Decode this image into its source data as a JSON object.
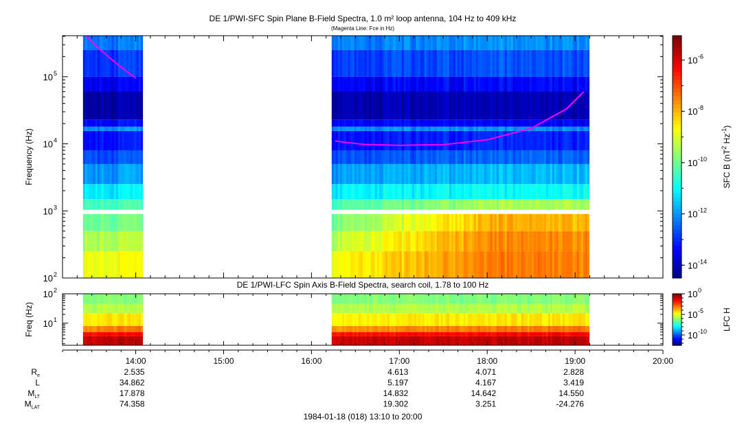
{
  "chart_data": [
    {
      "type": "heatmap",
      "title": "DE 1/PWI-SFC  Spin Plane B-Field Spectra, 1.0 m² loop antenna, 104 Hz to 409 kHz",
      "subtitle": "(Magenta Line: Fce in Hz)",
      "ylabel": "Frequency (Hz)",
      "yscale": "log",
      "ylim": [
        100,
        409000
      ],
      "yticks": [
        {
          "v": 100,
          "label": "10",
          "exp": "2"
        },
        {
          "v": 1000,
          "label": "10",
          "exp": "3"
        },
        {
          "v": 10000,
          "label": "10",
          "exp": "4"
        },
        {
          "v": 100000,
          "label": "10",
          "exp": "5"
        }
      ],
      "colorbar": {
        "label": "SFC B (nT",
        "label_sup1": "2",
        "label_mid": " Hz",
        "label_sup2": "-1",
        "label_end": ")",
        "log_range": [
          -14.5,
          -5.05
        ],
        "ticks": [
          {
            "v": -14,
            "label": "10",
            "exp": "-14"
          },
          {
            "v": -12,
            "label": "10",
            "exp": "-12"
          },
          {
            "v": -10,
            "label": "10",
            "exp": "-10"
          },
          {
            "v": -8,
            "label": "10",
            "exp": "-8"
          },
          {
            "v": -6,
            "label": "10",
            "exp": "-6"
          }
        ]
      },
      "data_intervals_hours": [
        [
          13.4,
          14.07
        ],
        [
          16.23,
          19.15
        ]
      ],
      "bands": [
        {
          "f": [
            250000,
            409000
          ],
          "log_power": [
            -12.2,
            -12.0
          ]
        },
        {
          "f": [
            100000,
            250000
          ],
          "log_power": [
            -12.8,
            -12.6
          ]
        },
        {
          "f": [
            60000,
            100000
          ],
          "log_power": [
            -13.4,
            -13.3
          ]
        },
        {
          "f": [
            23000,
            60000
          ],
          "log_power": [
            -14.1,
            -14.0
          ]
        },
        {
          "f": [
            18000,
            23000
          ],
          "log_power": [
            -13.3,
            -13.4
          ]
        },
        {
          "f": [
            15500,
            18000
          ],
          "log_power": [
            -12.0,
            -12.0
          ]
        },
        {
          "f": [
            8000,
            15500
          ],
          "log_power": [
            -13.2,
            -13.0
          ]
        },
        {
          "f": [
            5000,
            8000
          ],
          "log_power": [
            -12.6,
            -12.4
          ]
        },
        {
          "f": [
            2500,
            5000
          ],
          "log_power": [
            -11.9,
            -11.6
          ]
        },
        {
          "f": [
            1500,
            2500
          ],
          "log_power": [
            -11.1,
            -10.9
          ]
        },
        {
          "f": [
            1040,
            1500
          ],
          "log_power": [
            -10.3,
            -9.4
          ]
        },
        {
          "f": [
            500,
            900
          ],
          "log_power": [
            -9.9,
            -7.9
          ]
        },
        {
          "f": [
            250,
            500
          ],
          "log_power": [
            -9.3,
            -7.5
          ]
        },
        {
          "f": [
            100,
            250
          ],
          "log_power": [
            -8.7,
            -7.4
          ]
        }
      ],
      "fce_line": [
        {
          "x_hours": [
            13.43,
            13.6,
            13.8,
            14.0
          ],
          "f": [
            409000,
            250000,
            150000,
            95000
          ]
        },
        {
          "x_hours": [
            16.27,
            16.6,
            17.0,
            17.5,
            18.0,
            18.5,
            18.9,
            19.1
          ],
          "f": [
            11000,
            9800,
            9500,
            9700,
            11500,
            17000,
            33000,
            60000
          ]
        }
      ],
      "fce_color": "#ff00ff"
    },
    {
      "type": "heatmap",
      "title": "DE 1/PWI-LFC  Spin Axis B-Field Spectra, search coil, 1.78 to 100 Hz",
      "ylabel": "Freq (Hz)",
      "yscale": "log",
      "ylim": [
        1.78,
        100
      ],
      "yticks": [
        {
          "v": 10,
          "label": "10",
          "exp": "1"
        },
        {
          "v": 100,
          "label": "10",
          "exp": "2"
        }
      ],
      "colorbar": {
        "label": "LFC H",
        "log_range": [
          -12.5,
          0
        ],
        "ticks": [
          {
            "v": -10,
            "label": "10",
            "exp": "-10"
          },
          {
            "v": -5,
            "label": "10",
            "exp": "-5"
          },
          {
            "v": 0,
            "label": "10",
            "exp": "0"
          }
        ]
      },
      "data_intervals_hours": [
        [
          13.4,
          14.07
        ],
        [
          16.23,
          19.15
        ]
      ],
      "bands": [
        {
          "f": [
            45,
            100
          ],
          "log_power": [
            -6.2,
            -6.2
          ]
        },
        {
          "f": [
            22,
            45
          ],
          "log_power": [
            -5.6,
            -5.6
          ]
        },
        {
          "f": [
            8,
            22
          ],
          "log_power": [
            -4.6,
            -4.4
          ]
        },
        {
          "f": [
            5,
            8
          ],
          "log_power": [
            -3.4,
            -3.0
          ]
        },
        {
          "f": [
            3.6,
            5
          ],
          "log_power": [
            -1.8,
            -1.6
          ]
        },
        {
          "f": [
            1.78,
            3.6
          ],
          "log_power": [
            -1.0,
            -0.8
          ]
        }
      ]
    }
  ],
  "time_axis": {
    "range_hours": [
      13.1667,
      20.0
    ],
    "ticks": [
      {
        "h": 14,
        "label": "14:00"
      },
      {
        "h": 15,
        "label": "15:00"
      },
      {
        "h": 16,
        "label": "16:00"
      },
      {
        "h": 17,
        "label": "17:00"
      },
      {
        "h": 18,
        "label": "18:00"
      },
      {
        "h": 19,
        "label": "19:00"
      },
      {
        "h": 20,
        "label": "20:00"
      }
    ],
    "caption": "1984-01-18 (018) 13:10 to 20:00"
  },
  "ephemeris": {
    "rows": [
      {
        "name": "R",
        "sub": "e",
        "values": [
          "2.535",
          "4.613",
          "4.071",
          "2.828"
        ]
      },
      {
        "name": "L",
        "sub": "",
        "values": [
          "34.862",
          "5.197",
          "4.167",
          "3.419"
        ]
      },
      {
        "name": "M",
        "sub": "LT",
        "values": [
          "17.878",
          "14.832",
          "14.642",
          "14.550"
        ]
      },
      {
        "name": "M",
        "sub": "LAT",
        "values": [
          "74.358",
          "19.302",
          "3.251",
          "-24.276"
        ]
      }
    ],
    "columns_hours": [
      14,
      17,
      18,
      19
    ]
  }
}
